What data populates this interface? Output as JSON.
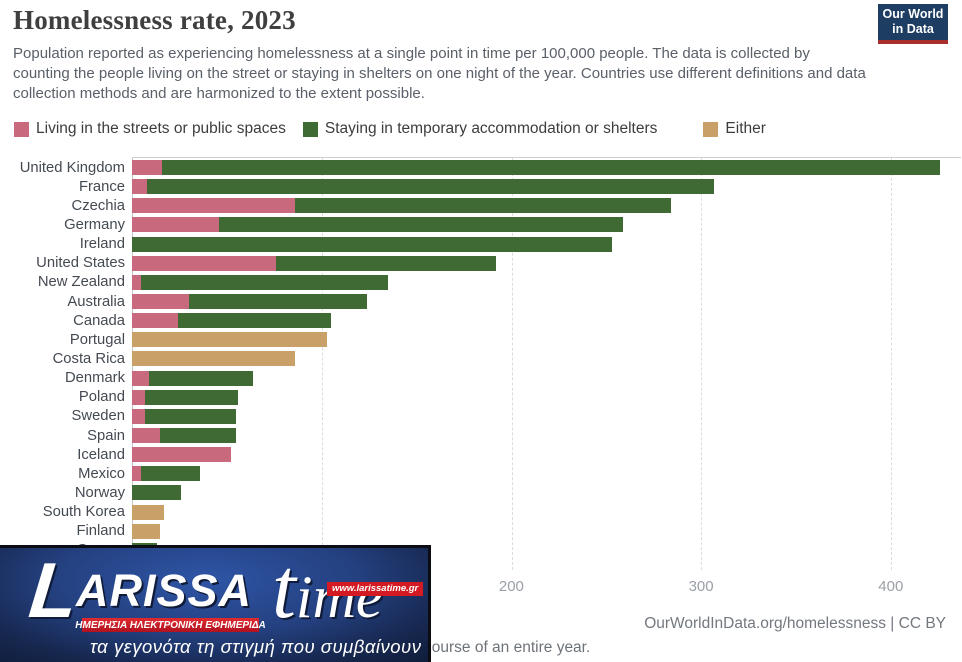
{
  "header": {
    "title": "Homelessness rate, 2023",
    "subtitle": "Population reported as experiencing homelessness at a single point in time per 100,000 people. The data is collected by counting the people living on the street or staying in shelters on one night of the year. Countries use different definitions and data collection methods and are harmonized to the extent possible.",
    "logo": {
      "line1": "Our World",
      "line2": "in Data"
    }
  },
  "colors": {
    "streets": "#c9697d",
    "shelters": "#3f6a33",
    "either": "#c9a068",
    "owid_navy": "#1d3d63",
    "owid_red": "#a82f2b"
  },
  "legend": [
    {
      "label": "Living in the streets or public spaces",
      "color": "#c9697d"
    },
    {
      "label": "Staying in temporary accommodation or shelters",
      "color": "#3f6a33"
    },
    {
      "label": "Either",
      "color": "#c9a068"
    }
  ],
  "chart_data": {
    "type": "bar",
    "orientation": "horizontal",
    "stacked": true,
    "title": "Homelessness rate, 2023",
    "xlabel": "per 100,000 people",
    "xlim": [
      0,
      437
    ],
    "xticks": [
      200,
      300,
      400
    ],
    "gridlines": [
      100,
      200,
      300,
      400
    ],
    "grid": "dashed-vertical",
    "legend_position": "top",
    "categories": [
      "United Kingdom",
      "France",
      "Czechia",
      "Germany",
      "Ireland",
      "United States",
      "New Zealand",
      "Australia",
      "Canada",
      "Portugal",
      "Costa Rica",
      "Denmark",
      "Poland",
      "Sweden",
      "Spain",
      "Iceland",
      "Mexico",
      "Norway",
      "South Korea",
      "Finland",
      "Greece"
    ],
    "series": [
      {
        "name": "Living in the streets or public spaces",
        "key": "streets",
        "color": "#c9697d",
        "values": [
          16,
          8,
          86,
          46,
          0,
          76,
          5,
          30,
          24,
          0,
          0,
          9,
          7,
          7,
          15,
          52,
          5,
          0,
          0,
          0,
          0
        ]
      },
      {
        "name": "Staying in temporary accommodation or shelters",
        "key": "shelters",
        "color": "#3f6a33",
        "values": [
          410,
          299,
          198,
          213,
          253,
          116,
          130,
          94,
          81,
          0,
          0,
          55,
          49,
          48,
          40,
          0,
          31,
          26,
          0,
          0,
          13
        ]
      },
      {
        "name": "Either",
        "key": "either",
        "color": "#c9a068",
        "values": [
          0,
          0,
          0,
          0,
          0,
          0,
          0,
          0,
          0,
          103,
          86,
          0,
          0,
          0,
          0,
          0,
          0,
          0,
          17,
          15,
          0
        ]
      }
    ],
    "totals": [
      426,
      307,
      284,
      259,
      253,
      192,
      135,
      124,
      105,
      103,
      86,
      64,
      56,
      55,
      55,
      52,
      36,
      26,
      17,
      15,
      13
    ]
  },
  "footer": {
    "source": "OurWorldInData.org/homelessness | CC BY",
    "note_visible_fragment": "course of an entire year."
  },
  "watermark": {
    "brand_initial": "L",
    "brand_main": "ARISSA",
    "brand_accent_t": "t",
    "brand_accent_rest": "ime",
    "url": "www.larissatime.gr",
    "strip": "ΗΜΕΡΗΣΙΑ ΗΛΕΚΤΡΟΝΙΚΗ ΕΦΗΜΕΡΙΔΑ",
    "tagline": "τα γεγονότα τη στιγμή που συμβαίνουν"
  }
}
